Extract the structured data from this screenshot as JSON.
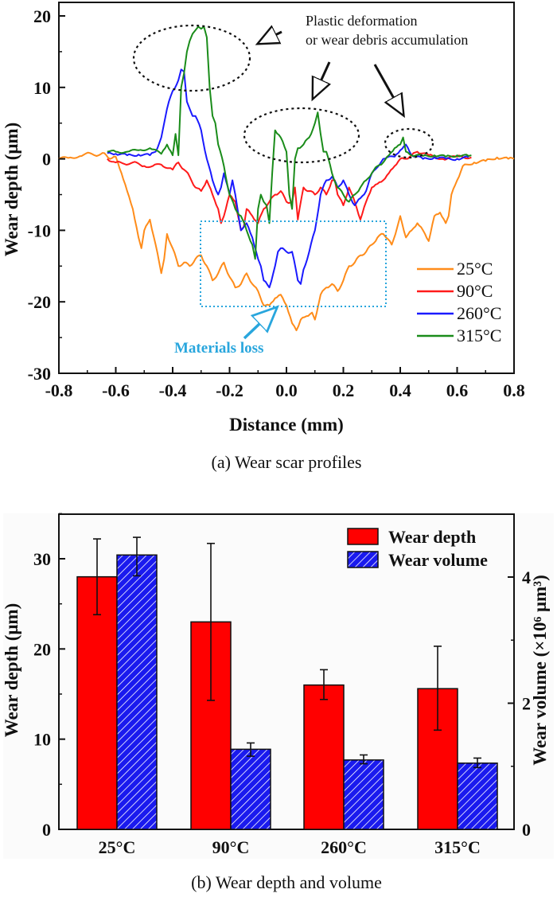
{
  "chart_data": [
    {
      "type": "line",
      "title": "",
      "caption": "(a) Wear scar profiles",
      "xlabel": "Distance (mm)",
      "ylabel": "Wear depth (μm)",
      "xlim": [
        -0.8,
        0.8
      ],
      "ylim": [
        -30,
        20
      ],
      "xticks": [
        "-0.8",
        "-0.6",
        "-0.4",
        "-0.2",
        "0.0",
        "0.2",
        "0.4",
        "0.6",
        "0.8"
      ],
      "yticks": [
        "20",
        "10",
        "0",
        "-10",
        "-20",
        "-30"
      ],
      "grid": false,
      "legend_position": "bottom-right",
      "series": [
        {
          "name": "25°C",
          "color": "#ff8c1a",
          "x": [
            -0.8,
            -0.76,
            -0.72,
            -0.69,
            -0.66,
            -0.64,
            -0.62,
            -0.6,
            -0.58,
            -0.56,
            -0.54,
            -0.52,
            -0.51,
            -0.5,
            -0.48,
            -0.46,
            -0.44,
            -0.43,
            -0.42,
            -0.4,
            -0.38,
            -0.36,
            -0.34,
            -0.32,
            -0.3,
            -0.28,
            -0.26,
            -0.24,
            -0.22,
            -0.2,
            -0.18,
            -0.16,
            -0.14,
            -0.12,
            -0.1,
            -0.08,
            -0.06,
            -0.04,
            -0.02,
            0.0,
            0.02,
            0.035,
            0.05,
            0.07,
            0.09,
            0.1,
            0.12,
            0.14,
            0.16,
            0.18,
            0.2,
            0.22,
            0.24,
            0.26,
            0.28,
            0.3,
            0.32,
            0.34,
            0.35,
            0.37,
            0.39,
            0.4,
            0.42,
            0.44,
            0.46,
            0.48,
            0.5,
            0.52,
            0.54,
            0.56,
            0.57,
            0.58,
            0.6,
            0.62,
            0.66,
            0.7,
            0.74,
            0.78,
            0.8
          ],
          "y": [
            0,
            0.2,
            0.4,
            0.8,
            0.5,
            0.8,
            0,
            0.3,
            -2,
            -4.5,
            -7,
            -11,
            -12.5,
            -10,
            -8.5,
            -12,
            -16,
            -14,
            -10.5,
            -12.5,
            -15,
            -14.5,
            -15,
            -14,
            -13.5,
            -15,
            -17,
            -16,
            -14.5,
            -16.5,
            -18,
            -17.5,
            -16,
            -17.5,
            -18.5,
            -20.5,
            -20.5,
            -19.5,
            -19,
            -20.5,
            -23,
            -24,
            -22.5,
            -22,
            -21.5,
            -22.5,
            -19,
            -18,
            -17.5,
            -18.5,
            -17,
            -15,
            -14.5,
            -13.5,
            -13,
            -12,
            -11,
            -10.5,
            -11,
            -12,
            -9.5,
            -8,
            -11,
            -10,
            -9,
            -10,
            -11.5,
            -8,
            -7.5,
            -9,
            -8,
            -5,
            -3,
            -1,
            -0.5,
            -0.3,
            0.2,
            0,
            0
          ]
        },
        {
          "name": "90°C",
          "color": "#ff1a1a",
          "x": [
            -0.63,
            -0.6,
            -0.57,
            -0.54,
            -0.5,
            -0.47,
            -0.44,
            -0.4,
            -0.38,
            -0.36,
            -0.34,
            -0.32,
            -0.3,
            -0.28,
            -0.26,
            -0.24,
            -0.23,
            -0.22,
            -0.2,
            -0.18,
            -0.16,
            -0.15,
            -0.14,
            -0.12,
            -0.1,
            -0.08,
            -0.06,
            -0.04,
            -0.02,
            0.0,
            0.02,
            0.03,
            0.04,
            0.06,
            0.08,
            0.1,
            0.12,
            0.14,
            0.16,
            0.17,
            0.18,
            0.2,
            0.22,
            0.24,
            0.26,
            0.28,
            0.3,
            0.32,
            0.34,
            0.36,
            0.38,
            0.4,
            0.42,
            0.44,
            0.46,
            0.5,
            0.55,
            0.6,
            0.65
          ],
          "y": [
            0,
            -0.5,
            -0.7,
            -0.5,
            -1,
            -1,
            -0.8,
            -1.5,
            -0.5,
            -1.5,
            -2.5,
            -4,
            -4.5,
            -3,
            -5,
            -7,
            -9,
            -8,
            -5,
            -6,
            -10,
            -9.5,
            -7,
            -8,
            -9,
            -7,
            -6,
            -5,
            -4.5,
            -6,
            -6,
            -4,
            -8.5,
            -4,
            -4.5,
            -5,
            -4,
            -5,
            -3,
            -3,
            -5,
            -6.5,
            -4,
            -6,
            -8.5,
            -6,
            -4,
            -3.5,
            -3,
            -2,
            -1,
            0,
            0,
            0.5,
            1,
            0.5,
            0,
            0.3,
            0.2
          ]
        },
        {
          "name": "260°C",
          "color": "#1a1aff",
          "x": [
            -0.63,
            -0.6,
            -0.56,
            -0.52,
            -0.48,
            -0.46,
            -0.44,
            -0.43,
            -0.42,
            -0.4,
            -0.38,
            -0.37,
            -0.36,
            -0.35,
            -0.34,
            -0.33,
            -0.32,
            -0.3,
            -0.28,
            -0.26,
            -0.24,
            -0.23,
            -0.22,
            -0.2,
            -0.19,
            -0.18,
            -0.16,
            -0.14,
            -0.12,
            -0.1,
            -0.09,
            -0.08,
            -0.06,
            -0.04,
            -0.03,
            -0.02,
            0.0,
            0.02,
            0.04,
            0.05,
            0.06,
            0.08,
            0.1,
            0.12,
            0.14,
            0.16,
            0.18,
            0.2,
            0.22,
            0.24,
            0.26,
            0.28,
            0.3,
            0.34,
            0.38,
            0.4,
            0.42,
            0.44,
            0.48,
            0.52,
            0.56,
            0.6,
            0.64
          ],
          "y": [
            0.8,
            0.7,
            0.5,
            0.6,
            0.5,
            1,
            3,
            5,
            7,
            9.5,
            11,
            12.5,
            12.2,
            8,
            7,
            6,
            6,
            4,
            0,
            -3,
            -5,
            -4,
            -2,
            -5,
            -3,
            -5,
            -10,
            -9,
            -11,
            -14,
            -15,
            -17,
            -18,
            -15,
            -13,
            -12.5,
            -13,
            -13,
            -17,
            -17.5,
            -15.5,
            -13,
            -10,
            -5,
            -3,
            -2.5,
            -4,
            -3,
            -5,
            -6.5,
            -5.5,
            -4.5,
            -2,
            0,
            0.3,
            1.2,
            2,
            0.5,
            0,
            0.2,
            0,
            0,
            0.2
          ]
        },
        {
          "name": "315°C",
          "color": "#1a8c1a",
          "x": [
            -0.63,
            -0.6,
            -0.56,
            -0.52,
            -0.48,
            -0.44,
            -0.42,
            -0.4,
            -0.39,
            -0.38,
            -0.37,
            -0.36,
            -0.35,
            -0.34,
            -0.33,
            -0.32,
            -0.31,
            -0.3,
            -0.29,
            -0.28,
            -0.27,
            -0.26,
            -0.25,
            -0.24,
            -0.22,
            -0.2,
            -0.18,
            -0.16,
            -0.14,
            -0.12,
            -0.11,
            -0.1,
            -0.09,
            -0.08,
            -0.07,
            -0.06,
            -0.05,
            -0.04,
            -0.02,
            0.0,
            0.01,
            0.02,
            0.03,
            0.04,
            0.06,
            0.08,
            0.1,
            0.11,
            0.12,
            0.13,
            0.14,
            0.16,
            0.18,
            0.2,
            0.22,
            0.24,
            0.26,
            0.28,
            0.3,
            0.32,
            0.34,
            0.36,
            0.38,
            0.4,
            0.41,
            0.42,
            0.44,
            0.48,
            0.52,
            0.56,
            0.6,
            0.64,
            0.65
          ],
          "y": [
            1,
            1,
            1,
            1.2,
            1.5,
            0.7,
            2,
            0.5,
            3.5,
            0.5,
            10,
            12,
            15,
            16.5,
            17.5,
            18,
            18.5,
            18.2,
            18.5,
            17,
            10,
            6,
            5,
            2,
            -1,
            -5,
            -7,
            -8,
            -10,
            -12,
            -14,
            -7,
            -5,
            -6,
            -6.5,
            -9,
            -2,
            4,
            3,
            1,
            -5,
            -7,
            0,
            1.5,
            2,
            3,
            5,
            6.5,
            3.5,
            1,
            1,
            -2,
            -4,
            -5,
            -6,
            -5,
            -4,
            -3,
            -2,
            -1,
            -0.5,
            0.5,
            1.5,
            2,
            3,
            1,
            0.5,
            0.4,
            0.5,
            0.3,
            0.5,
            0.4,
            0.5
          ]
        }
      ],
      "annotations": [
        {
          "text_lines": [
            "Plastic deformation",
            "or wear debris accumulation"
          ],
          "color": "#111111"
        },
        {
          "text": "Materials loss",
          "color": "#29a6dd"
        }
      ]
    },
    {
      "type": "bar",
      "title": "",
      "caption": "(b) Wear depth and volume",
      "categories": [
        "25°C",
        "90°C",
        "260°C",
        "315°C"
      ],
      "xlabel": "",
      "ylabel": "Wear depth (μm)",
      "ylabel_right": "Wear volume (×10⁶ μm³)",
      "ylim": [
        0,
        35
      ],
      "ylim_right": [
        0,
        5
      ],
      "yticks": [
        "0",
        "10",
        "20",
        "30"
      ],
      "yticks_right": [
        "0",
        "2",
        "4"
      ],
      "legend_position": "top-right",
      "series": [
        {
          "name": "Wear depth",
          "axis": "left",
          "color": "#ff0000",
          "pattern": "solid",
          "values": [
            28.0,
            23.0,
            16.0,
            15.6
          ],
          "err_low": [
            23.8,
            14.3,
            14.4,
            11.0
          ],
          "err_high": [
            32.2,
            31.7,
            17.7,
            20.3
          ]
        },
        {
          "name": "Wear volume",
          "axis": "right",
          "color": "#1a1aee",
          "pattern": "hatched",
          "values": [
            4.35,
            1.27,
            1.1,
            1.05
          ],
          "err_low": [
            4.02,
            1.16,
            1.04,
            0.98
          ],
          "err_high": [
            4.63,
            1.37,
            1.18,
            1.13
          ]
        }
      ]
    }
  ]
}
